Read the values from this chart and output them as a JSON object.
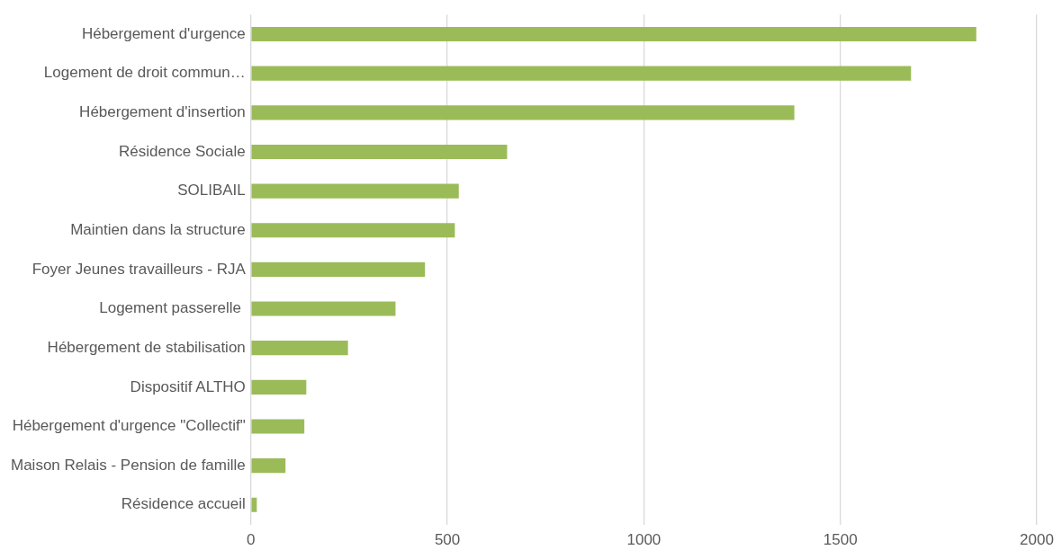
{
  "chart_data": {
    "type": "bar",
    "orientation": "horizontal",
    "categories": [
      "Hébergement d'urgence",
      "Logement de droit commun…",
      "Hébergement d'insertion",
      "Résidence Sociale",
      "SOLIBAIL",
      "Maintien dans la structure",
      "Foyer Jeunes travailleurs - RJA",
      "Logement passerelle ",
      "Hébergement de stabilisation",
      "Dispositif ALTHO",
      "Hébergement d'urgence \"Collectif\"",
      "Maison Relais - Pension de famille",
      "Résidence accueil"
    ],
    "values": [
      1846,
      1680,
      1383,
      652,
      529,
      519,
      443,
      368,
      247,
      141,
      136,
      88,
      15
    ],
    "color": "#9bbb59",
    "xlim": [
      0,
      2000
    ],
    "xticks": [
      0,
      500,
      1000,
      1500,
      2000
    ],
    "grid": "x",
    "legend": false
  }
}
